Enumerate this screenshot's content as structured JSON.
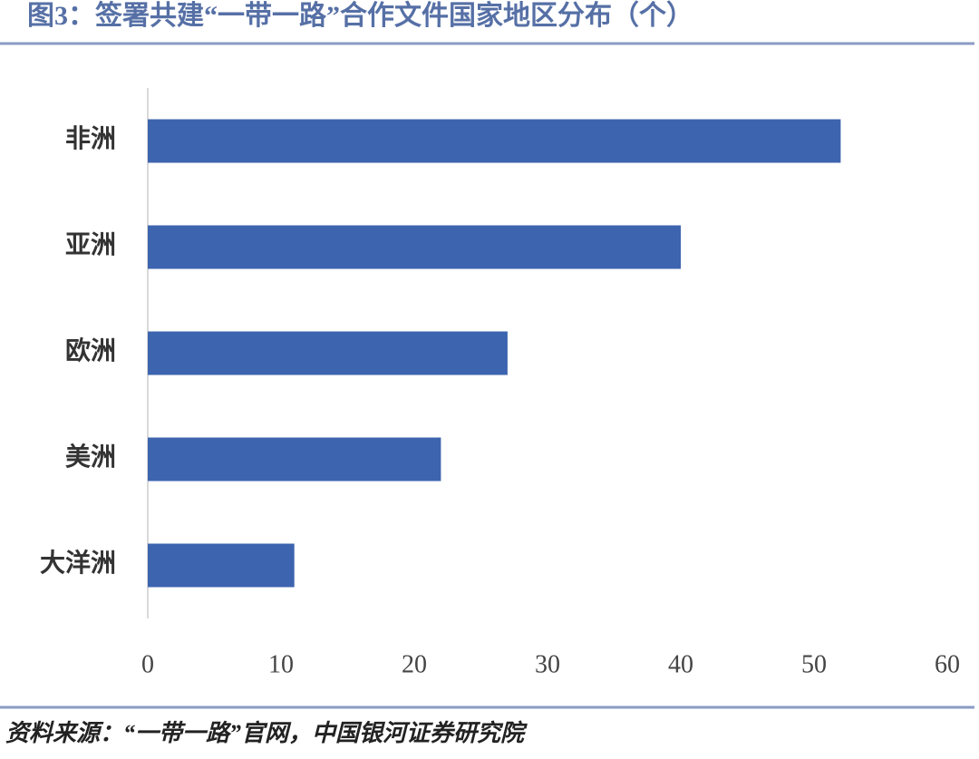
{
  "chart_data": {
    "type": "bar",
    "orientation": "horizontal",
    "title": "图3：签署共建“一带一路”合作文件国家地区分布（个）",
    "source": "资料来源：“一带一路”官网，中国银河证券研究院",
    "categories": [
      "非洲",
      "亚洲",
      "欧洲",
      "美洲",
      "大洋洲"
    ],
    "values": [
      52,
      40,
      27,
      22,
      11
    ],
    "color": "#3d64ae",
    "xlim": [
      0,
      60
    ],
    "xticks": [
      0,
      10,
      20,
      30,
      40,
      50,
      60
    ]
  }
}
